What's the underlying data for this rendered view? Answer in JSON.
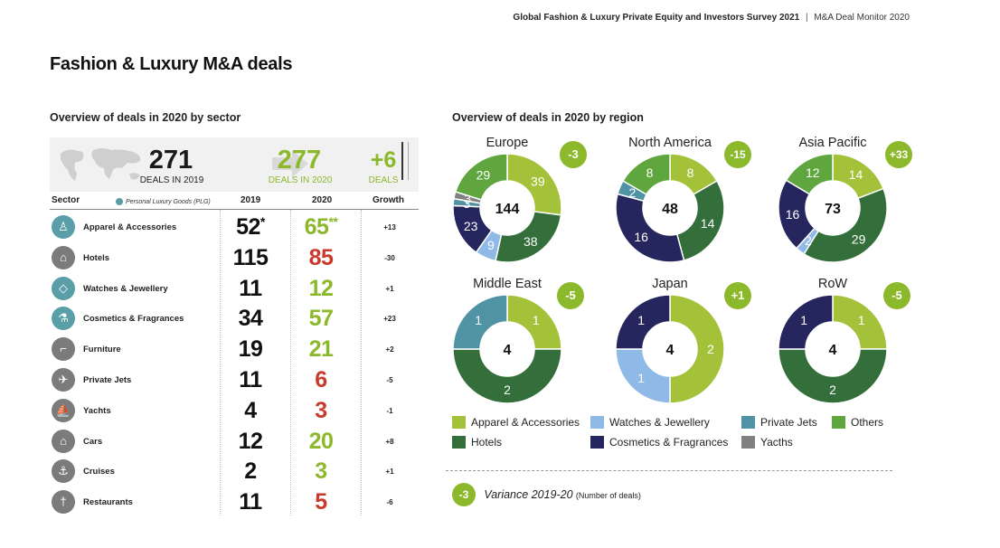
{
  "header": {
    "survey": "Global Fashion & Luxury Private Equity and Investors Survey 2021",
    "separator": "|",
    "monitor": "M&A Deal Monitor 2020"
  },
  "title": "Fashion & Luxury M&A deals",
  "sector_section": {
    "title": "Overview of deals in 2020 by sector",
    "summary": {
      "deals_2019": "271",
      "deals_2019_label": "DEALS IN 2019",
      "deals_2020": "277",
      "deals_2020_label": "DEALS IN 2020",
      "variance": "+6",
      "variance_label": "DEALS"
    },
    "columns": {
      "sector": "Sector",
      "plg_legend": "Personal Luxury Goods (PLG)",
      "y2019": "2019",
      "y2020": "2020",
      "growth": "Growth"
    }
  },
  "region_section": {
    "title": "Overview of deals in 2020 by region"
  },
  "colors": {
    "apparel": "#a3c23a",
    "hotels": "#336e3b",
    "watches": "#8fb9e6",
    "cosmetics": "#26265e",
    "jets": "#4f93a4",
    "others": "#5ea63d",
    "yachts": "#808080",
    "up": "#8cb82b",
    "down": "#c93a2c",
    "badge": "#8cb82b"
  },
  "chart_data": [
    {
      "type": "table",
      "title": "Overview of deals in 2020 by sector",
      "columns": [
        "Sector",
        "2019",
        "2020",
        "Growth"
      ],
      "rows": [
        {
          "sector": "Apparel & Accessories",
          "icon": "shirt-icon",
          "plg": true,
          "y2019": "52",
          "y2019_mark": "*",
          "y2020": "65",
          "y2020_mark": "**",
          "growth": "+13",
          "trend": "up"
        },
        {
          "sector": "Hotels",
          "icon": "hotel-icon",
          "plg": false,
          "y2019": "115",
          "y2019_mark": "",
          "y2020": "85",
          "y2020_mark": "",
          "growth": "-30",
          "trend": "down"
        },
        {
          "sector": "Watches & Jewellery",
          "icon": "diamond-icon",
          "plg": true,
          "y2019": "11",
          "y2019_mark": "",
          "y2020": "12",
          "y2020_mark": "",
          "growth": "+1",
          "trend": "up"
        },
        {
          "sector": "Cosmetics & Fragrances",
          "icon": "flask-icon",
          "plg": true,
          "y2019": "34",
          "y2019_mark": "",
          "y2020": "57",
          "y2020_mark": "",
          "growth": "+23",
          "trend": "up"
        },
        {
          "sector": "Furniture",
          "icon": "sofa-icon",
          "plg": false,
          "y2019": "19",
          "y2019_mark": "",
          "y2020": "21",
          "y2020_mark": "",
          "growth": "+2",
          "trend": "up"
        },
        {
          "sector": "Private Jets",
          "icon": "plane-icon",
          "plg": false,
          "y2019": "11",
          "y2019_mark": "",
          "y2020": "6",
          "y2020_mark": "",
          "growth": "-5",
          "trend": "down"
        },
        {
          "sector": "Yachts",
          "icon": "yacht-icon",
          "plg": false,
          "y2019": "4",
          "y2019_mark": "",
          "y2020": "3",
          "y2020_mark": "",
          "growth": "-1",
          "trend": "down"
        },
        {
          "sector": "Cars",
          "icon": "car-icon",
          "plg": false,
          "y2019": "12",
          "y2019_mark": "",
          "y2020": "20",
          "y2020_mark": "",
          "growth": "+8",
          "trend": "up"
        },
        {
          "sector": "Cruises",
          "icon": "ship-icon",
          "plg": false,
          "y2019": "2",
          "y2019_mark": "",
          "y2020": "3",
          "y2020_mark": "",
          "growth": "+1",
          "trend": "up"
        },
        {
          "sector": "Restaurants",
          "icon": "cutlery-icon",
          "plg": false,
          "y2019": "11",
          "y2019_mark": "",
          "y2020": "5",
          "y2020_mark": "",
          "growth": "-6",
          "trend": "down"
        }
      ]
    },
    {
      "type": "pie",
      "title": "Overview of deals in 2020 by region",
      "donut": true,
      "categories": [
        "Apparel & Accessories",
        "Hotels",
        "Watches & Jewellery",
        "Cosmetics & Fragrances",
        "Private Jets",
        "Yacths",
        "Others"
      ],
      "category_colors": [
        "#a3c23a",
        "#336e3b",
        "#8fb9e6",
        "#26265e",
        "#4f93a4",
        "#808080",
        "#5ea63d"
      ],
      "regions": [
        {
          "name": "Europe",
          "total": "144",
          "variance": "-3",
          "values": [
            39,
            38,
            9,
            23,
            3,
            3,
            29
          ]
        },
        {
          "name": "North America",
          "total": "48",
          "variance": "-15",
          "values": [
            8,
            14,
            0,
            16,
            2,
            0,
            8
          ]
        },
        {
          "name": "Asia Pacific",
          "total": "73",
          "variance": "+33",
          "values": [
            14,
            29,
            2,
            16,
            0,
            0,
            12
          ]
        },
        {
          "name": "Middle East",
          "total": "4",
          "variance": "-5",
          "values": [
            1,
            2,
            0,
            0,
            1,
            0,
            0
          ]
        },
        {
          "name": "Japan",
          "total": "4",
          "variance": "+1",
          "values": [
            2,
            0,
            1,
            1,
            0,
            0,
            0
          ]
        },
        {
          "name": "RoW",
          "total": "4",
          "variance": "-5",
          "values": [
            1,
            2,
            0,
            1,
            0,
            0,
            0
          ]
        }
      ],
      "legend": [
        "Apparel & Accessories",
        "Watches & Jewellery",
        "Private Jets",
        "Others",
        "Hotels",
        "Cosmetics & Fragrances",
        "Yacths"
      ],
      "variance_note": {
        "badge": "-3",
        "label": "Variance 2019-20",
        "note": "(Number of deals)"
      }
    }
  ]
}
